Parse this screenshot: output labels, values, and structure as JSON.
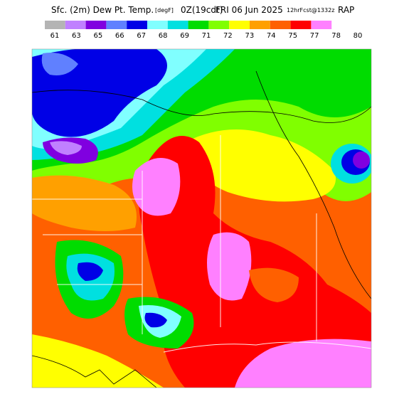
{
  "header": {
    "parameter": "Sfc. (2m) Dew Pt. Temp.",
    "units": "[degF]",
    "valid": "0Z(19cdt)",
    "date": "FRI 06 Jun 2025",
    "forecast": "12hrFcst@1332z",
    "model": "RAP"
  },
  "legend": {
    "labels": [
      61,
      63,
      65,
      66,
      67,
      68,
      69,
      71,
      72,
      73,
      74,
      75,
      77,
      78,
      80
    ],
    "colors": [
      "#b4b4b4",
      "#c080ff",
      "#8000e0",
      "#6080ff",
      "#0000e6",
      "#80ffff",
      "#00e0e0",
      "#00dc00",
      "#80ff00",
      "#ffff00",
      "#ffa000",
      "#ff6000",
      "#ff0000",
      "#ff80ff"
    ]
  }
}
